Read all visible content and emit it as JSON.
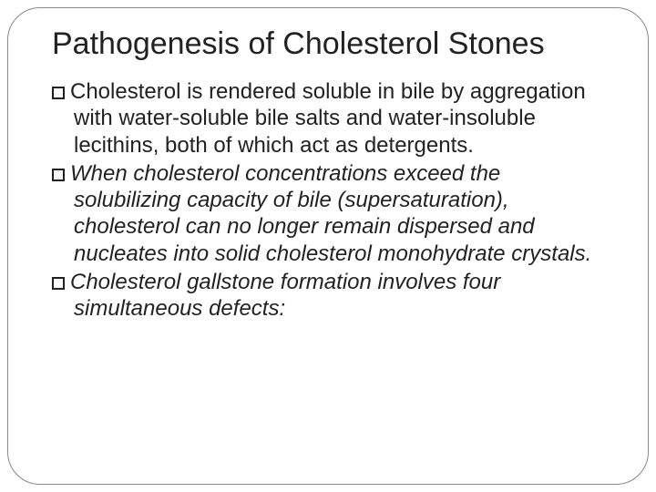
{
  "slide": {
    "title": "Pathogenesis of Cholesterol Stones",
    "title_fontsize": 34,
    "title_color": "#222222",
    "body_fontsize": 24,
    "body_color": "#222222",
    "background_color": "#ffffff",
    "frame_border_color": "#888888",
    "frame_border_radius": 36,
    "bullet_style": "hollow-square",
    "bullet_color": "#222222",
    "items": [
      {
        "text": "Cholesterol is rendered soluble in bile by aggregation with water-soluble bile salts and water-insoluble lecithins, both of which act as detergents.",
        "italic": false
      },
      {
        "text": "When cholesterol concentrations exceed the solubilizing capacity of bile (supersaturation), cholesterol can no longer remain dispersed and nucleates into solid cholesterol monohydrate crystals.",
        "italic": true
      },
      {
        "text": "Cholesterol gallstone formation involves four simultaneous defects:",
        "italic": true
      }
    ]
  }
}
